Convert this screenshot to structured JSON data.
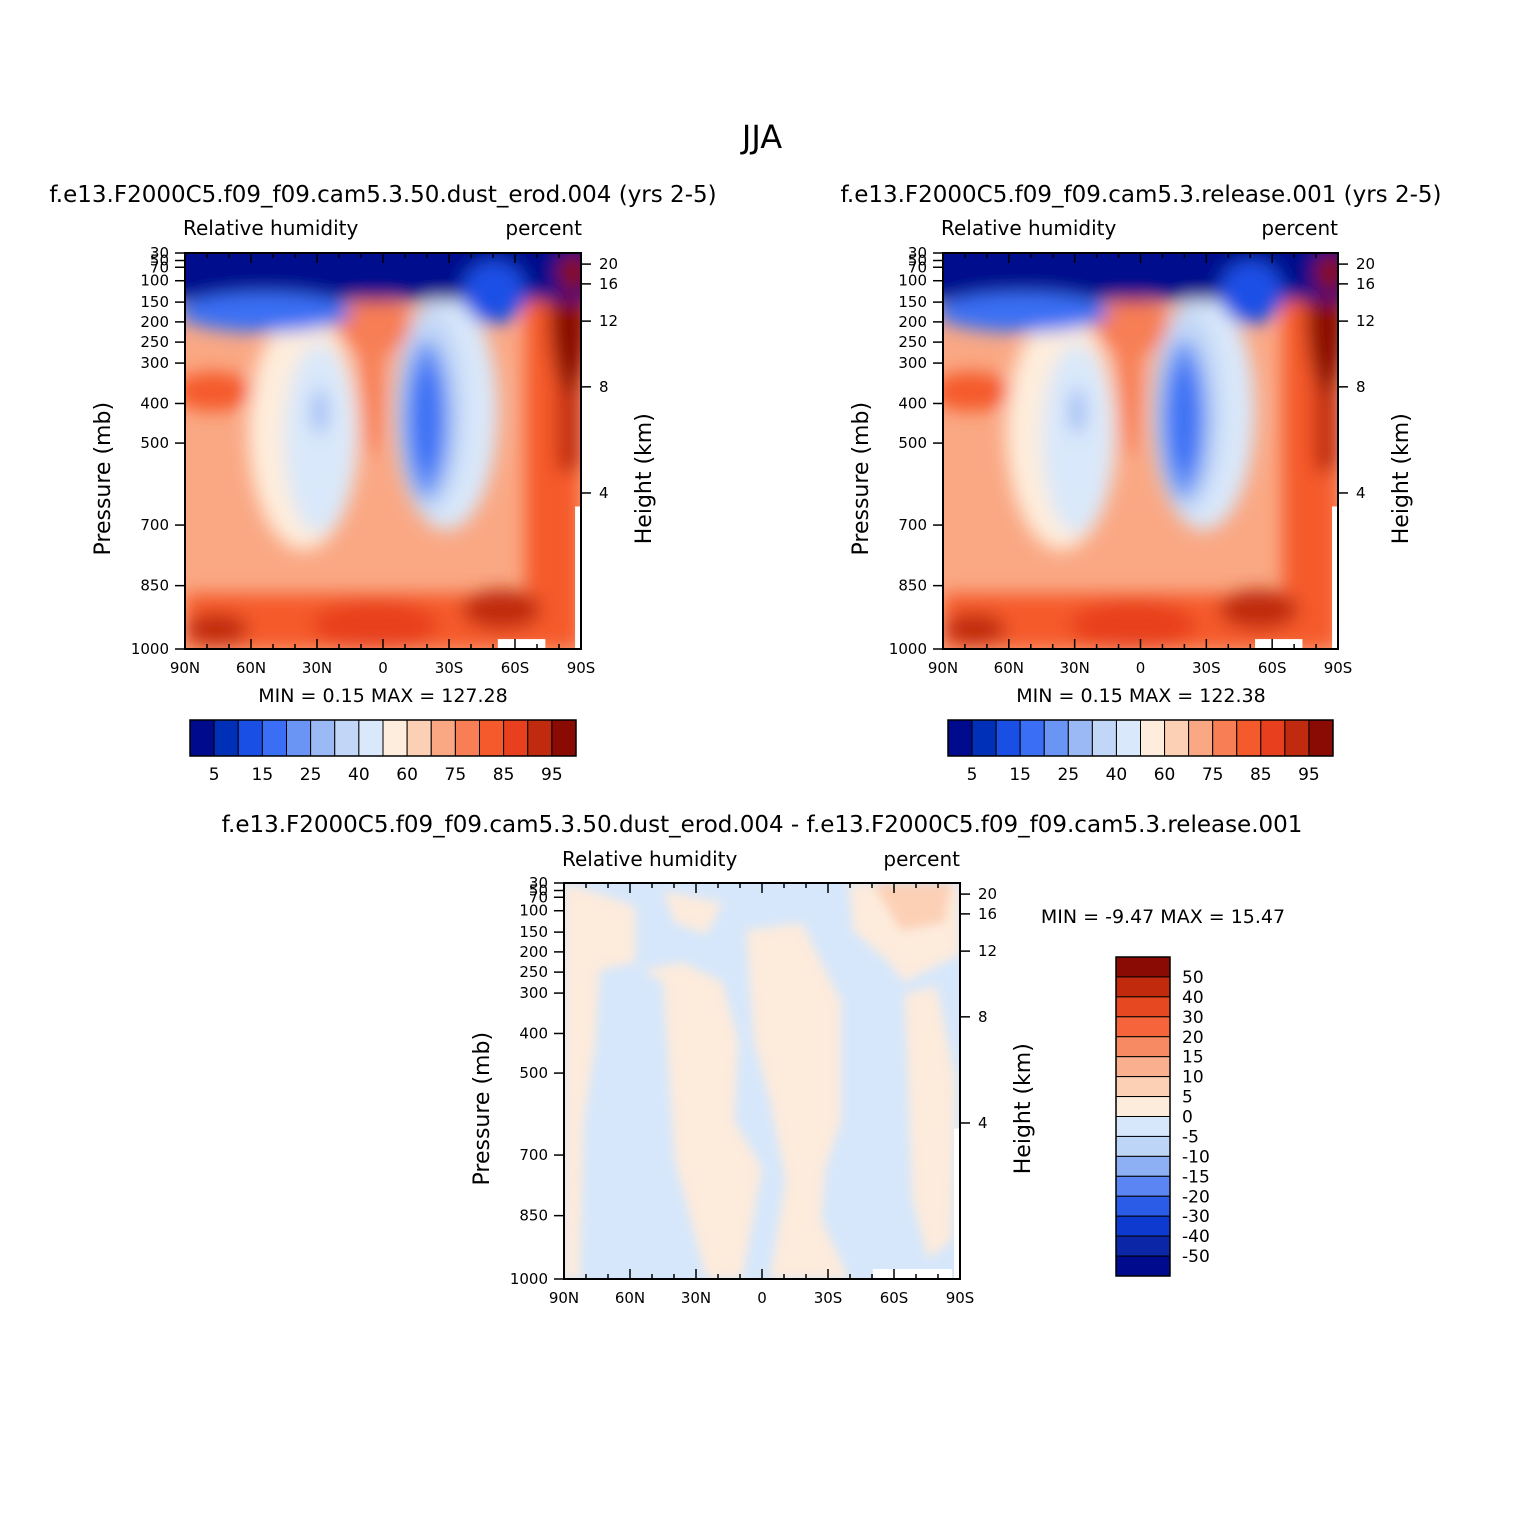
{
  "figure_title": "JJA",
  "colors": {
    "full_scale": [
      "#000a8c",
      "#0030b8",
      "#1a4fe6",
      "#3a6ff5",
      "#6a95f5",
      "#9bb9f5",
      "#c2d7f7",
      "#d9e8fa",
      "#feeddc",
      "#fcd0b5",
      "#faa884",
      "#f77e55",
      "#f55a2c",
      "#e8401f",
      "#c02a0e",
      "#8a0a04"
    ],
    "diff_scale": [
      "#000a8c",
      "#0c26a8",
      "#0f3ad0",
      "#2a5ce8",
      "#5a85f2",
      "#8db0f5",
      "#bdd5f7",
      "#d6e7fb",
      "#fdebdc",
      "#fcd0b5",
      "#fab08f",
      "#f78a63",
      "#f5643a",
      "#e64822",
      "#c22a0e",
      "#8a0a04"
    ]
  },
  "chart_data": [
    {
      "type": "heatmap",
      "title": "f.e13.F2000C5.f09_f09.cam5.3.50.dust_erod.004 (yrs 2-5)",
      "left_label": "Relative humidity",
      "right_label": "percent",
      "ylabel": "Pressure (mb)",
      "ylabel_right": "Height (km)",
      "x_ticks": [
        "90N",
        "60N",
        "30N",
        "0",
        "30S",
        "60S",
        "90S"
      ],
      "y_ticks": [
        "30",
        "50",
        "70",
        "100",
        "150",
        "200",
        "250",
        "300",
        "400",
        "500",
        "700",
        "850",
        "1000"
      ],
      "y_ticks_right": [
        "20",
        "16",
        "12",
        "8",
        "4"
      ],
      "min_max": "MIN =     0.15   MAX =  127.28",
      "colorbar_labels": [
        "5",
        "15",
        "25",
        "40",
        "60",
        "75",
        "85",
        "95"
      ],
      "variant": "model"
    },
    {
      "type": "heatmap",
      "title": "f.e13.F2000C5.f09_f09.cam5.3.release.001 (yrs 2-5)",
      "left_label": "Relative humidity",
      "right_label": "percent",
      "ylabel": "Pressure (mb)",
      "ylabel_right": "Height (km)",
      "x_ticks": [
        "90N",
        "60N",
        "30N",
        "0",
        "30S",
        "60S",
        "90S"
      ],
      "y_ticks": [
        "30",
        "50",
        "70",
        "100",
        "150",
        "200",
        "250",
        "300",
        "400",
        "500",
        "700",
        "850",
        "1000"
      ],
      "y_ticks_right": [
        "20",
        "16",
        "12",
        "8",
        "4"
      ],
      "min_max": "MIN =     0.15   MAX =  122.38",
      "colorbar_labels": [
        "5",
        "15",
        "25",
        "40",
        "60",
        "75",
        "85",
        "95"
      ],
      "variant": "control"
    },
    {
      "type": "heatmap",
      "title": "f.e13.F2000C5.f09_f09.cam5.3.50.dust_erod.004 - f.e13.F2000C5.f09_f09.cam5.3.release.001",
      "left_label": "Relative humidity",
      "right_label": "percent",
      "ylabel": "Pressure (mb)",
      "ylabel_right": "Height (km)",
      "x_ticks": [
        "90N",
        "60N",
        "30N",
        "0",
        "30S",
        "60S",
        "90S"
      ],
      "y_ticks": [
        "30",
        "50",
        "70",
        "100",
        "150",
        "200",
        "250",
        "300",
        "400",
        "500",
        "700",
        "850",
        "1000"
      ],
      "y_ticks_right": [
        "20",
        "16",
        "12",
        "8",
        "4"
      ],
      "min_max": "MIN =   -9.47   MAX =   15.47",
      "colorbar_labels": [
        "50",
        "40",
        "30",
        "20",
        "15",
        "10",
        "5",
        "0",
        "-5",
        "-10",
        "-15",
        "-20",
        "-30",
        "-40",
        "-50"
      ],
      "variant": "difference"
    }
  ]
}
